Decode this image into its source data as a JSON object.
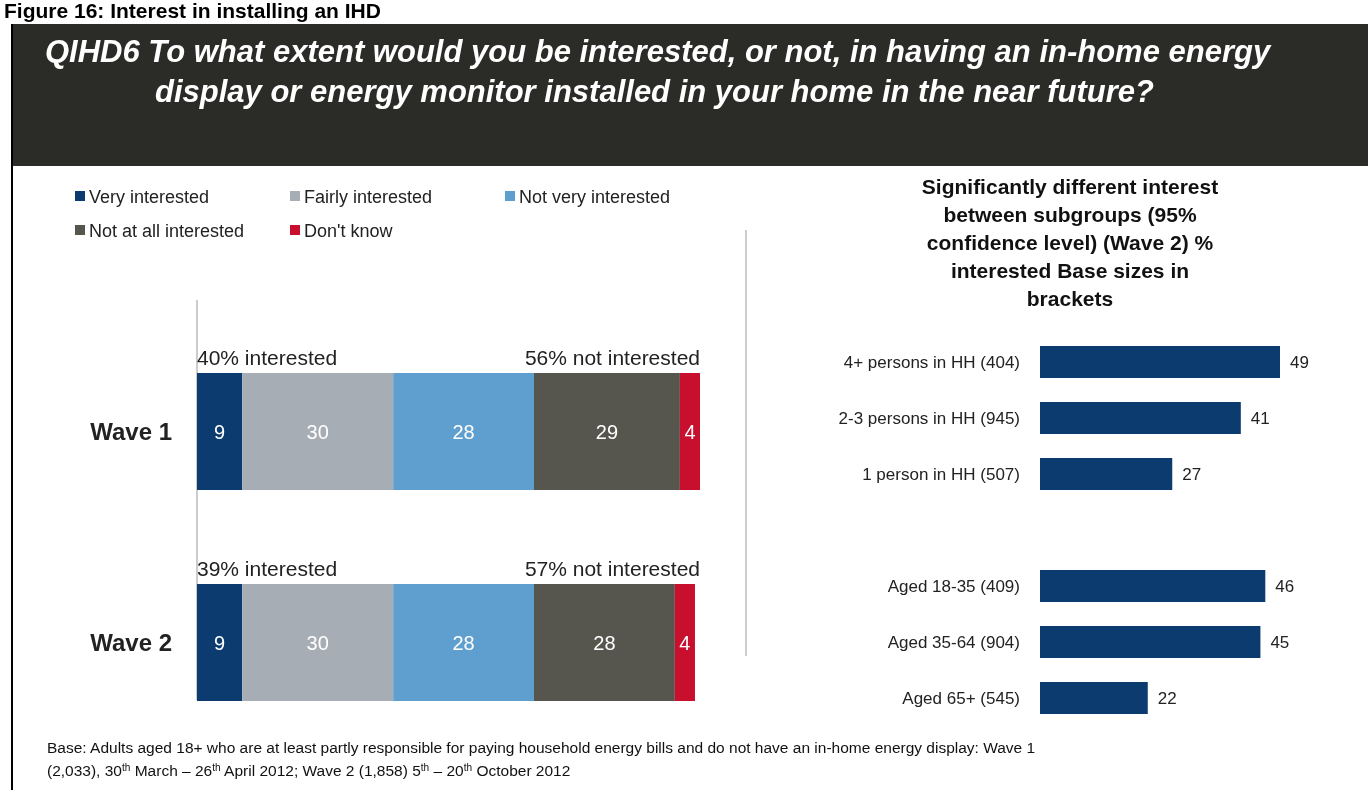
{
  "chart_data": [
    {
      "type": "bar",
      "orientation": "horizontal",
      "stacked": true,
      "title": "Figure 16: Interest in installing an IHD",
      "subtitle": "QIHD6 To what extent would you be interested, or not, in having an in-home energy display or energy monitor installed in your home in the near future?",
      "categories": [
        "Wave 1",
        "Wave 2"
      ],
      "series": [
        {
          "name": "Very interested",
          "color": "#0b3b6f",
          "values": [
            9,
            9
          ]
        },
        {
          "name": "Fairly interested",
          "color": "#a7adb4",
          "values": [
            30,
            30
          ]
        },
        {
          "name": "Not very interested",
          "color": "#5f9fcf",
          "values": [
            28,
            28
          ]
        },
        {
          "name": "Not at all interested",
          "color": "#57564e",
          "values": [
            29,
            28
          ]
        },
        {
          "name": "Don't know",
          "color": "#c8102e",
          "values": [
            4,
            4
          ]
        }
      ],
      "tick_labels": "y",
      "data_labels": true,
      "legend": "top left",
      "annotations": [
        "40% interested",
        "56% not interested",
        "39% interested",
        "57% not interested",
        "Base:  Adults aged 18+ who are at least partly responsible for paying household energy bills and do not have an in-home energy display: Wave 1 (2,033), 30$^{th}$ March – 26$^{th}$ April 2012; Wave 2 (1,858)  5$^{th}$ – 20$^{th}$ October 2012"
      ]
    },
    {
      "type": "bar",
      "orientation": "horizontal",
      "title": "Significantly different interest between subgroups (95% confidence level) (Wave 2) % interested Base sizes in brackets",
      "categories": [
        "4+ persons in HH (404)",
        "2-3 persons in HH (945)",
        "1 person in HH (507)",
        null,
        "Aged 18-35 (409)",
        "Aged 35-64 (904)",
        "Aged 65+ (545)"
      ],
      "values": [
        49,
        41,
        27,
        null,
        46,
        45,
        22
      ],
      "color": "#0b3b6f",
      "tick_labels": "y",
      "data_labels": true
    }
  ]
}
